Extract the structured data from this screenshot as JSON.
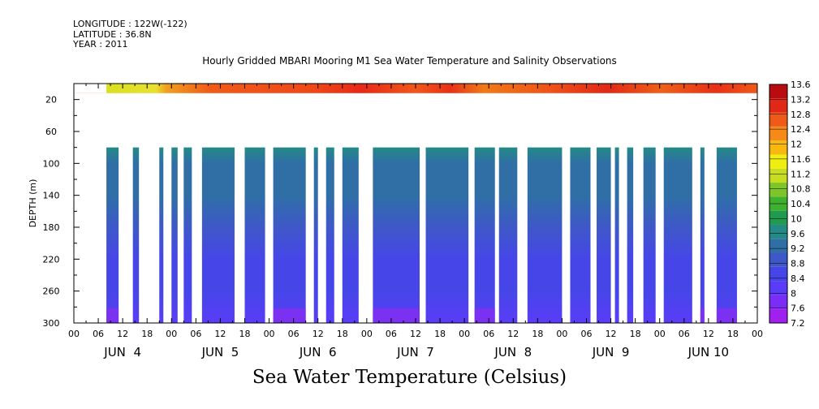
{
  "header": {
    "longitude": "LONGITUDE : 122W(-122)",
    "latitude": "LATITUDE : 36.8N",
    "year": "YEAR : 2011"
  },
  "chart_data": {
    "type": "heatmap",
    "title": "Hourly Gridded MBARI Mooring M1 Sea Water Temperature and Salinity Observations",
    "variable_label": "Sea Water Temperature (Celsius)",
    "ylabel": "DEPTH (m)",
    "ylim": [
      300,
      0
    ],
    "yticks": [
      20,
      60,
      100,
      140,
      180,
      220,
      260,
      300
    ],
    "xlim_hours": [
      0,
      168
    ],
    "xtick_labels": [
      "00",
      "06",
      "12",
      "18",
      "00",
      "06",
      "12",
      "18",
      "00",
      "06",
      "12",
      "18",
      "00",
      "06",
      "12",
      "18",
      "00",
      "06",
      "12",
      "18",
      "00",
      "06",
      "12",
      "18",
      "00",
      "06",
      "12",
      "18",
      "00"
    ],
    "day_labels": [
      "JUN  4",
      "JUN  5",
      "JUN  6",
      "JUN  7",
      "JUN  8",
      "JUN  9",
      "JUN 10"
    ],
    "colorbar": {
      "levels": [
        7.2,
        7.6,
        8,
        8.4,
        8.8,
        9.2,
        9.6,
        10,
        10.4,
        10.8,
        11.2,
        11.6,
        12,
        12.4,
        12.8,
        13.2,
        13.6
      ],
      "colors": [
        "#a020f0",
        "#7c2df5",
        "#5a3cf8",
        "#4646e8",
        "#3e58c8",
        "#2f6fa6",
        "#248a86",
        "#1f9a4f",
        "#40b030",
        "#7cc62a",
        "#c8dc20",
        "#f0ee10",
        "#f8b810",
        "#f58a18",
        "#f05a18",
        "#e02818",
        "#b80c10",
        "#8a0008"
      ]
    },
    "surface_layer": {
      "depth_top": 0,
      "depth_bottom": 12,
      "values_approx": "11.5-13.2 (warmest ~12.8-13.2, yellow ~11.6 early Jun 4)"
    },
    "deep_layer": {
      "depth_top": 80,
      "depth_bottom": 300,
      "profile_depths": [
        80,
        100,
        140,
        180,
        220,
        260,
        300
      ],
      "profile_values": [
        9.4,
        9.1,
        8.8,
        8.5,
        8.2,
        8.0,
        7.8
      ]
    },
    "data_segments_hours": [
      [
        8,
        11
      ],
      [
        14.5,
        16
      ],
      [
        21,
        22
      ],
      [
        24,
        25.5
      ],
      [
        27,
        29
      ],
      [
        31.5,
        39.5
      ],
      [
        42,
        47
      ],
      [
        49,
        57
      ],
      [
        59,
        60
      ],
      [
        62,
        64
      ],
      [
        66,
        70
      ],
      [
        73.5,
        85
      ],
      [
        86.5,
        97
      ],
      [
        98.5,
        103.5
      ],
      [
        104.5,
        109
      ],
      [
        111.5,
        120
      ],
      [
        122,
        127
      ],
      [
        128.5,
        132
      ],
      [
        133,
        134
      ],
      [
        136,
        137.5
      ],
      [
        140,
        143
      ],
      [
        145,
        152
      ],
      [
        154,
        155
      ],
      [
        158,
        163
      ]
    ]
  }
}
